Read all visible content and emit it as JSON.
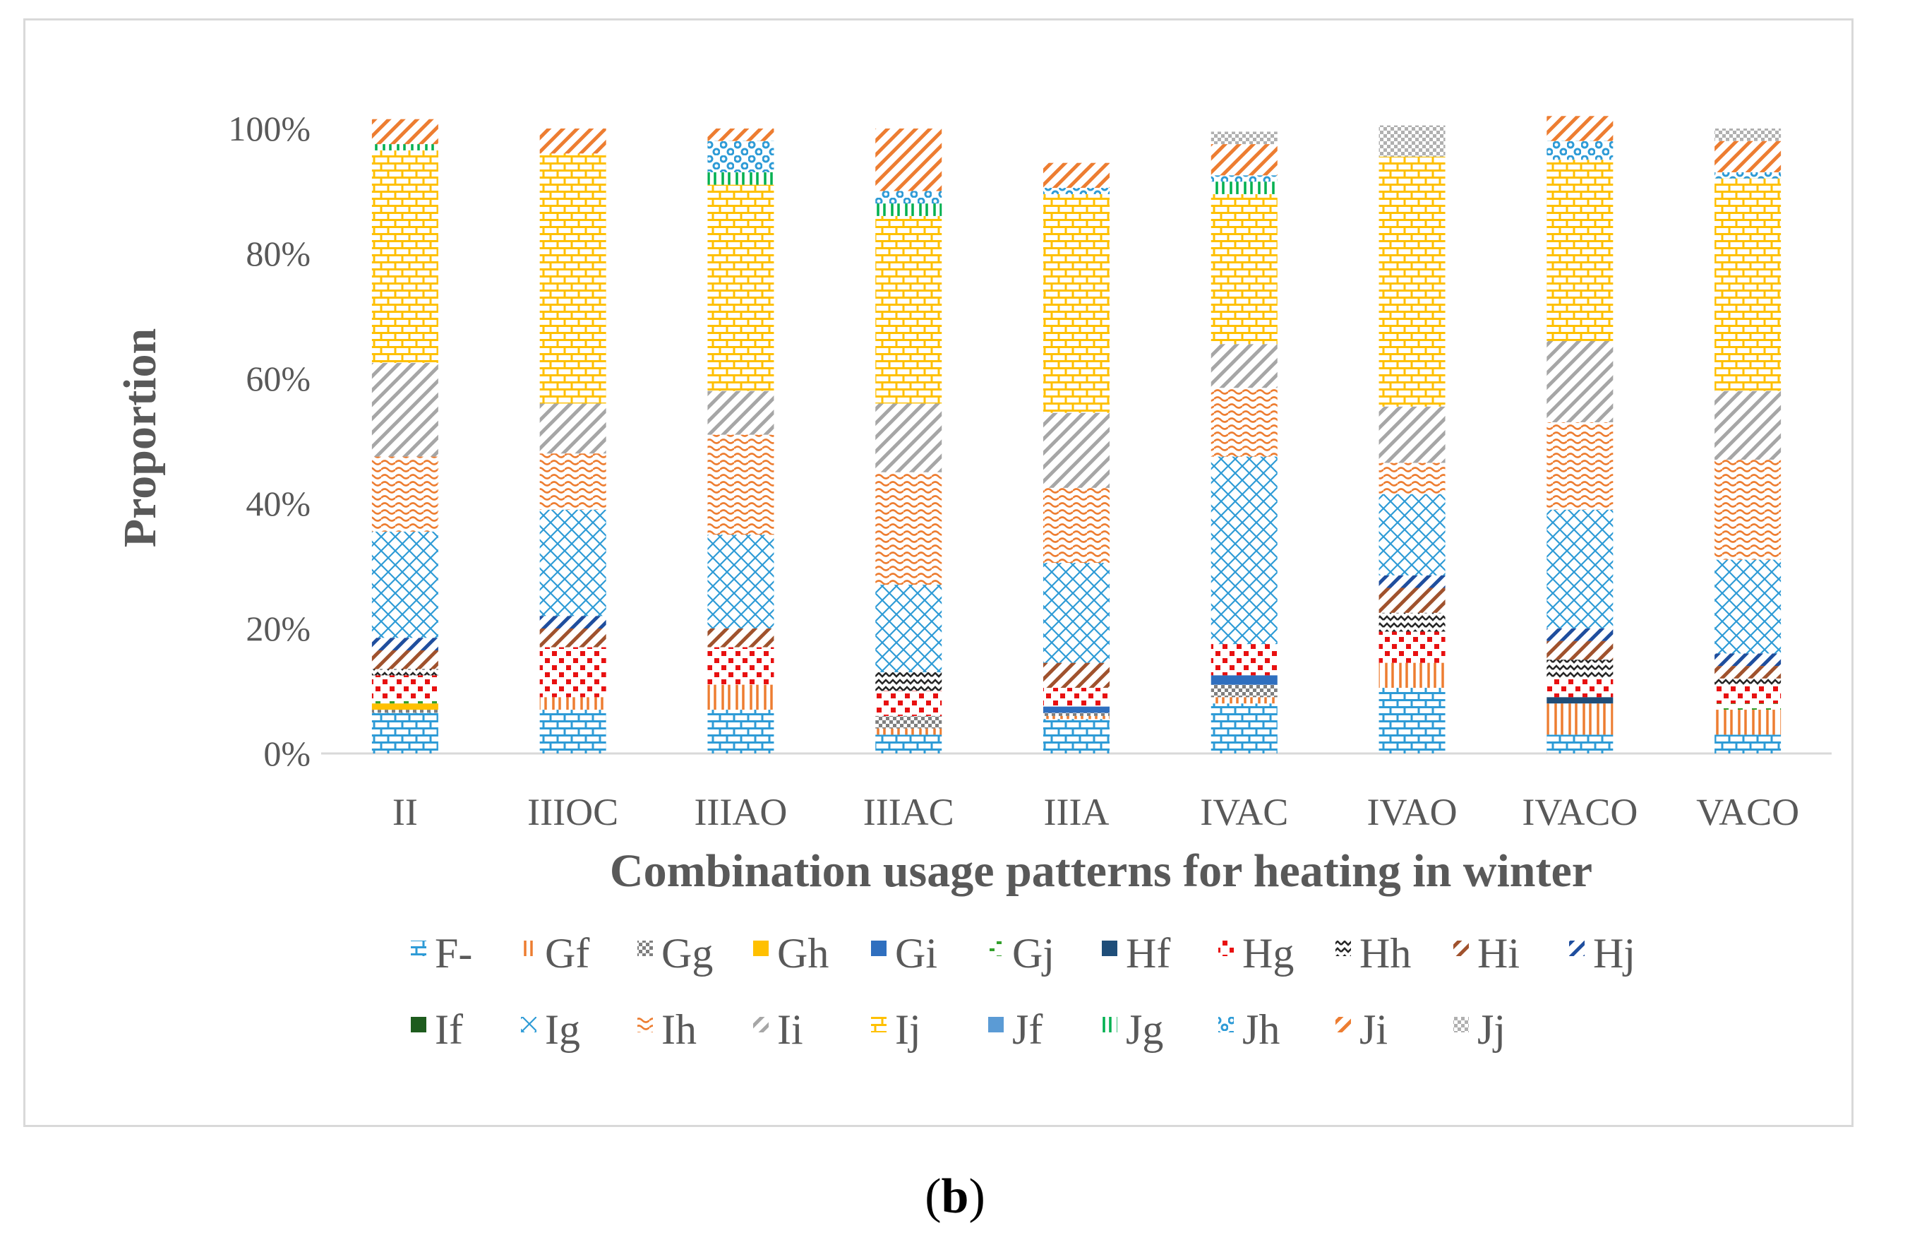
{
  "chart_data": {
    "type": "bar",
    "stacked": true,
    "percent": true,
    "xlabel": "Combination usage patterns for heating in winter",
    "ylabel": "Proportion",
    "ylim": [
      0,
      100
    ],
    "yticks": [
      "0%",
      "20%",
      "40%",
      "60%",
      "80%",
      "100%"
    ],
    "categories": [
      "II",
      "IIIOC",
      "IIIAO",
      "IIIAC",
      "IIIA",
      "IVAC",
      "IVAO",
      "IVACO",
      "VACO"
    ],
    "series": [
      {
        "name": "F-",
        "color": "#2e9bd6",
        "pattern": "brick",
        "values": [
          6.5,
          7,
          7,
          3,
          5.5,
          8,
          10.5,
          3,
          3
        ]
      },
      {
        "name": "Gf",
        "color": "#ed7d31",
        "pattern": "vlines",
        "values": [
          0,
          2,
          4,
          1,
          0.5,
          1,
          4,
          5,
          4
        ]
      },
      {
        "name": "Gg",
        "color": "#7f7f7f",
        "pattern": "check",
        "values": [
          0.5,
          0,
          0,
          2,
          0.5,
          2,
          0,
          0,
          0
        ]
      },
      {
        "name": "Gh",
        "color": "#ffc000",
        "pattern": "solid",
        "values": [
          1,
          0,
          0,
          0,
          0,
          0,
          0,
          0,
          0
        ]
      },
      {
        "name": "Gi",
        "color": "#2f6fbf",
        "pattern": "solid",
        "values": [
          0,
          0,
          0,
          0,
          1,
          1.5,
          0,
          0,
          0
        ]
      },
      {
        "name": "Gj",
        "color": "#33a02c",
        "pattern": "dash",
        "values": [
          0.5,
          0,
          0,
          0,
          0,
          0,
          0,
          0,
          1
        ]
      },
      {
        "name": "Hf",
        "color": "#1f4e79",
        "pattern": "solid",
        "values": [
          0,
          0,
          0,
          0,
          0,
          0,
          0,
          1,
          0
        ]
      },
      {
        "name": "Hg",
        "color": "#e81010",
        "pattern": "dots",
        "values": [
          4,
          8,
          6,
          4,
          3,
          5,
          5,
          3,
          3
        ]
      },
      {
        "name": "Hh",
        "color": "#262626",
        "pattern": "zig",
        "values": [
          1,
          0,
          0,
          3,
          0,
          0,
          3,
          3,
          1
        ]
      },
      {
        "name": "Hi",
        "color": "#a0522d",
        "pattern": "diag",
        "values": [
          3,
          3,
          3,
          0,
          4,
          0,
          4,
          3,
          2
        ]
      },
      {
        "name": "Hj",
        "color": "#1f4e9e",
        "pattern": "diag",
        "values": [
          2,
          2,
          0,
          0,
          0,
          0,
          2,
          2,
          2
        ]
      },
      {
        "name": "If",
        "color": "#1e5c1e",
        "pattern": "solid",
        "values": [
          0,
          0,
          0,
          0,
          0,
          0,
          0,
          0,
          0
        ]
      },
      {
        "name": "Ig",
        "color": "#2e9bd6",
        "pattern": "cross",
        "values": [
          17,
          17,
          15,
          14,
          16,
          30,
          13,
          19,
          15
        ]
      },
      {
        "name": "Ih",
        "color": "#ed7d31",
        "pattern": "wave",
        "values": [
          12,
          9,
          16,
          18,
          12,
          11,
          5,
          14,
          16
        ]
      },
      {
        "name": "Ii",
        "color": "#a6a6a6",
        "pattern": "diag",
        "values": [
          15,
          8,
          7,
          11,
          12,
          7,
          9,
          13,
          11
        ]
      },
      {
        "name": "Ij",
        "color": "#ffc000",
        "pattern": "brick",
        "values": [
          34,
          40,
          33,
          30,
          35,
          24,
          40,
          29,
          34
        ]
      },
      {
        "name": "Jf",
        "color": "#5b9bd5",
        "pattern": "solid",
        "values": [
          0,
          0,
          0,
          0,
          0,
          0,
          0,
          0,
          0
        ]
      },
      {
        "name": "Jg",
        "color": "#00b050",
        "pattern": "vlines",
        "values": [
          1,
          0,
          2,
          2,
          0,
          2,
          0,
          0,
          0
        ]
      },
      {
        "name": "Jh",
        "color": "#2e9bd6",
        "pattern": "balls",
        "values": [
          0,
          0,
          5,
          2,
          1,
          1,
          0,
          3,
          1
        ]
      },
      {
        "name": "Ji",
        "color": "#ed7d31",
        "pattern": "diag",
        "values": [
          4,
          4,
          2,
          10,
          4,
          5,
          0,
          4,
          5
        ]
      },
      {
        "name": "Jj",
        "color": "#b0b0b0",
        "pattern": "check",
        "values": [
          0,
          0,
          0,
          0,
          0,
          2,
          5,
          0,
          2
        ]
      }
    ]
  },
  "caption": {
    "open": "(",
    "label": "b",
    "close": ")"
  }
}
